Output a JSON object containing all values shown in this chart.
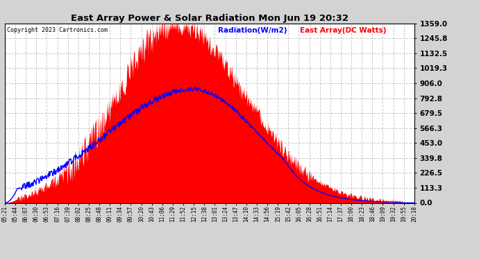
{
  "title": "East Array Power & Solar Radiation Mon Jun 19 20:32",
  "copyright": "Copyright 2023 Cartronics.com",
  "legend_radiation": "Radiation(W/m2)",
  "legend_array": "East Array(DC Watts)",
  "bg_color": "#d3d3d3",
  "plot_bg_color": "#ffffff",
  "radiation_color": "#ff0000",
  "array_color": "#0000ff",
  "grid_color": "#c8c8c8",
  "yticks": [
    0.0,
    113.3,
    226.5,
    339.8,
    453.0,
    566.3,
    679.5,
    792.8,
    906.0,
    1019.3,
    1132.5,
    1245.8,
    1359.0
  ],
  "xtick_labels": [
    "05:21",
    "05:44",
    "06:07",
    "06:30",
    "06:53",
    "07:16",
    "07:39",
    "08:02",
    "08:25",
    "08:48",
    "09:11",
    "09:34",
    "09:57",
    "10:20",
    "10:43",
    "11:06",
    "11:29",
    "11:52",
    "12:15",
    "12:38",
    "13:01",
    "13:24",
    "13:47",
    "14:10",
    "14:33",
    "14:56",
    "15:19",
    "15:42",
    "16:05",
    "16:28",
    "16:51",
    "17:14",
    "17:37",
    "18:00",
    "18:23",
    "18:46",
    "19:09",
    "19:32",
    "19:55",
    "20:18"
  ],
  "ymax": 1359.0,
  "ymin": 0.0,
  "rad_peak_t": 0.415,
  "rad_peak_v": 1359.0,
  "rad_rise_sigma": 0.14,
  "rad_fall_sigma": 0.17,
  "arr_peak_t": 0.46,
  "arr_peak_v": 860.0,
  "arr_rise_sigma": 0.21,
  "arr_fall_sigma": 0.16
}
